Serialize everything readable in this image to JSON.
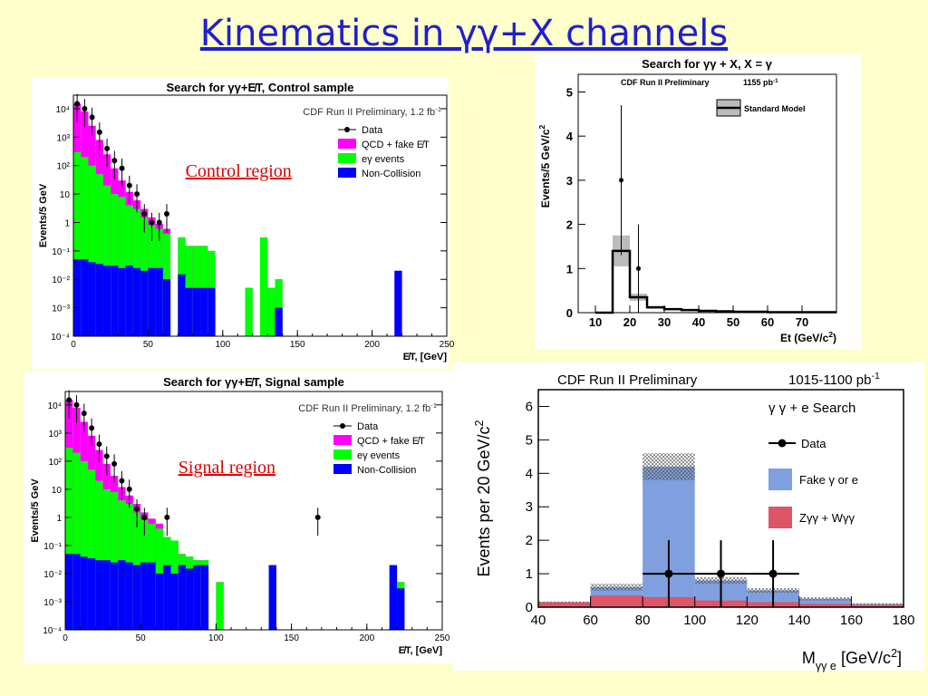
{
  "slide_title": "Kinematics in γγ+X channels",
  "colors": {
    "qcd": "#ff00ff",
    "eg": "#00ff00",
    "noncoll": "#0000ff",
    "fake": "#7f9fdf",
    "zgg": "#dd5566",
    "sm_band": "#bbbbbb",
    "region_text": "#dd0000",
    "title": "#1f1fd0"
  },
  "chart_data": [
    {
      "type": "bar",
      "title": "Search for γγ+E̸T, Control sample",
      "annotation": "CDF Run II Preliminary, 1.2 fb",
      "annotation_sup": "-1",
      "region_label": "Control region",
      "xlabel": "E̸T, [GeV]",
      "ylabel": "Events/5 GeV",
      "log_y": true,
      "xlim": [
        0,
        250
      ],
      "ylim": [
        0.0001,
        30000
      ],
      "x_ticks": [
        0,
        50,
        100,
        150,
        200,
        250
      ],
      "y_ticks": [
        {
          "v": 0.0001,
          "l": "10⁻⁴"
        },
        {
          "v": 0.001,
          "l": "10⁻³"
        },
        {
          "v": 0.01,
          "l": "10⁻²"
        },
        {
          "v": 0.1,
          "l": "10⁻¹"
        },
        {
          "v": 1,
          "l": "1"
        },
        {
          "v": 10,
          "l": "10"
        },
        {
          "v": 100,
          "l": "10²"
        },
        {
          "v": 1000,
          "l": "10³"
        },
        {
          "v": 10000,
          "l": "10⁴"
        }
      ],
      "legend": [
        "Data",
        "QCD + fake E̸T",
        "eγ events",
        "Non-Collision"
      ],
      "bin_width": 5,
      "bins_x": [
        0,
        5,
        10,
        15,
        20,
        25,
        30,
        35,
        40,
        45,
        50,
        55,
        60,
        65,
        70,
        75,
        80,
        85,
        90,
        95,
        100,
        105,
        110,
        115,
        120,
        125,
        130,
        135,
        140,
        145,
        150,
        155,
        160,
        165,
        170,
        175,
        180,
        185,
        190,
        195,
        200,
        205,
        210,
        215,
        220,
        225,
        230,
        235,
        240,
        245
      ],
      "noncoll": [
        0.05,
        0.05,
        0.04,
        0.035,
        0.03,
        0.03,
        0.025,
        0.03,
        0.025,
        0.02,
        0.025,
        0.025,
        0.01,
        0,
        0.015,
        0.005,
        0.005,
        0.005,
        0.005,
        0,
        0,
        0,
        0,
        0,
        0,
        0,
        0,
        0.001,
        0,
        0,
        0,
        0,
        0,
        0,
        0,
        0,
        0,
        0,
        0,
        0,
        0,
        0,
        0,
        0.02,
        0,
        0,
        0,
        0,
        0,
        0
      ],
      "eg": [
        300,
        200,
        100,
        50,
        20,
        10,
        8,
        4,
        3,
        1.5,
        0.8,
        0.6,
        0.4,
        0,
        0.3,
        0.15,
        0.15,
        0.15,
        0.1,
        0,
        0,
        0,
        0,
        0.005,
        0,
        0.3,
        0.005,
        0.01,
        0,
        0,
        0,
        0,
        0,
        0,
        0,
        0,
        0,
        0,
        0,
        0,
        0,
        0,
        0,
        0,
        0,
        0,
        0,
        0,
        0,
        0
      ],
      "total": [
        15000,
        8000,
        2500,
        800,
        250,
        80,
        30,
        12,
        6,
        3,
        1.5,
        0.9,
        0.6,
        0,
        0.3,
        0.15,
        0.15,
        0.15,
        0.1,
        0,
        0,
        0,
        0,
        0.005,
        0,
        0.3,
        0.005,
        0.01,
        0,
        0,
        0,
        0,
        0,
        0,
        0,
        0,
        0,
        0,
        0,
        0,
        0,
        0,
        0,
        0.02,
        0,
        0,
        0,
        0,
        0,
        0
      ],
      "data_points": [
        [
          2.5,
          15000
        ],
        [
          7.5,
          10000
        ],
        [
          12.5,
          5000
        ],
        [
          17.5,
          1500
        ],
        [
          22.5,
          400
        ],
        [
          27.5,
          150
        ],
        [
          32.5,
          80
        ],
        [
          37.5,
          20
        ],
        [
          42.5,
          10
        ],
        [
          47.5,
          2
        ],
        [
          52.5,
          1
        ],
        [
          57.5,
          1
        ],
        [
          62.5,
          2
        ]
      ]
    },
    {
      "type": "bar",
      "title": "Search for γγ+E̸T, Signal sample",
      "annotation": "CDF Run II Preliminary, 1.2 fb",
      "annotation_sup": "-1",
      "region_label": "Signal region",
      "xlabel": "E̸T, [GeV]",
      "ylabel": "Events/5 GeV",
      "log_y": true,
      "xlim": [
        0,
        250
      ],
      "ylim": [
        0.0001,
        30000
      ],
      "x_ticks": [
        0,
        50,
        100,
        150,
        200,
        250
      ],
      "y_ticks": [
        {
          "v": 0.0001,
          "l": "10⁻⁴"
        },
        {
          "v": 0.001,
          "l": "10⁻³"
        },
        {
          "v": 0.01,
          "l": "10⁻²"
        },
        {
          "v": 0.1,
          "l": "10⁻¹"
        },
        {
          "v": 1,
          "l": "1"
        },
        {
          "v": 10,
          "l": "10"
        },
        {
          "v": 100,
          "l": "10²"
        },
        {
          "v": 1000,
          "l": "10³"
        },
        {
          "v": 10000,
          "l": "10⁴"
        }
      ],
      "legend": [
        "Data",
        "QCD + fake E̸T",
        "eγ events",
        "Non-Collision"
      ],
      "bin_width": 5,
      "bins_x": [
        0,
        5,
        10,
        15,
        20,
        25,
        30,
        35,
        40,
        45,
        50,
        55,
        60,
        65,
        70,
        75,
        80,
        85,
        90,
        95,
        100,
        105,
        110,
        115,
        120,
        125,
        130,
        135,
        140,
        145,
        150,
        155,
        160,
        165,
        170,
        175,
        180,
        185,
        190,
        195,
        200,
        205,
        210,
        215,
        220,
        225,
        230,
        235,
        240,
        245
      ],
      "noncoll": [
        0.05,
        0.05,
        0.04,
        0.035,
        0.03,
        0.03,
        0.025,
        0.03,
        0.025,
        0.02,
        0.025,
        0.025,
        0.01,
        0.02,
        0.01,
        0.02,
        0.015,
        0.02,
        0.02,
        0,
        0,
        0,
        0,
        0,
        0,
        0,
        0,
        0.02,
        0,
        0,
        0,
        0,
        0,
        0,
        0,
        0,
        0,
        0,
        0,
        0,
        0,
        0,
        0,
        0.02,
        0.003,
        0,
        0,
        0,
        0,
        0
      ],
      "eg": [
        300,
        200,
        100,
        50,
        20,
        10,
        8,
        4,
        3,
        1.5,
        0.8,
        0.6,
        0.4,
        0.2,
        0.15,
        0.05,
        0.04,
        0.03,
        0.03,
        0,
        0.005,
        0,
        0,
        0,
        0,
        0,
        0,
        0.02,
        0,
        0,
        0,
        0,
        0,
        0,
        0,
        0,
        0,
        0,
        0,
        0,
        0,
        0,
        0,
        0.02,
        0.005,
        0,
        0,
        0,
        0,
        0
      ],
      "total": [
        15000,
        8000,
        2500,
        800,
        250,
        80,
        30,
        12,
        6,
        3,
        1.5,
        0.9,
        0.6,
        0.2,
        0.15,
        0.05,
        0.04,
        0.03,
        0.03,
        0,
        0.005,
        0,
        0,
        0,
        0,
        0,
        0,
        0.02,
        0,
        0,
        0,
        0,
        0,
        0,
        0,
        0,
        0,
        0,
        0,
        0,
        0,
        0,
        0,
        0.02,
        0.005,
        0,
        0,
        0,
        0,
        0
      ],
      "data_points": [
        [
          2.5,
          15000
        ],
        [
          7.5,
          10000
        ],
        [
          12.5,
          5000
        ],
        [
          17.5,
          1500
        ],
        [
          22.5,
          400
        ],
        [
          27.5,
          150
        ],
        [
          32.5,
          80
        ],
        [
          37.5,
          20
        ],
        [
          42.5,
          10
        ],
        [
          47.5,
          2
        ],
        [
          52.5,
          1
        ],
        [
          67.5,
          1
        ],
        [
          167.5,
          1
        ]
      ]
    },
    {
      "type": "bar",
      "title": "Search for γγ + X, X = γ",
      "annotation": "CDF Run II Preliminary",
      "annotation2": "1155 pb",
      "annotation2_sup": "-1",
      "legend": [
        "Standard Model"
      ],
      "xlabel": "Et (GeV/c",
      "xlabel_sup": "2",
      "xlabel_end": ")",
      "ylabel": "Events/5 GeV/c",
      "ylabel_sup": "2",
      "xlim": [
        5,
        80
      ],
      "ylim": [
        0,
        5.4
      ],
      "x_ticks": [
        10,
        20,
        30,
        40,
        50,
        60,
        70
      ],
      "y_ticks": [
        0,
        1,
        2,
        3,
        4,
        5
      ],
      "bin_width": 5,
      "bins_x": [
        10,
        15,
        20,
        25,
        30,
        35,
        40,
        45,
        50,
        55,
        60,
        65,
        70,
        75
      ],
      "sm": [
        0,
        1.4,
        0.35,
        0.12,
        0.08,
        0.06,
        0.04,
        0.03,
        0.02,
        0.02,
        0.01,
        0.01,
        0.01,
        0.01
      ],
      "sm_err": [
        0,
        0.35,
        0.08,
        0.03,
        0.02,
        0.01,
        0.01,
        0.01,
        0,
        0,
        0,
        0,
        0,
        0
      ],
      "data_points": [
        [
          17.5,
          3,
          1.7
        ],
        [
          22.5,
          1,
          1
        ]
      ]
    },
    {
      "type": "bar",
      "title": "CDF Run II Preliminary",
      "annotation": "1015-1100 pb",
      "annotation_sup": "-1",
      "search_label": "γ γ + e  Search",
      "legend": [
        "Data",
        "Fake γ or e",
        "Zγγ + Wγγ"
      ],
      "xlabel": "M",
      "xlabel_sub": "γγ e",
      "xlabel_unit": "[GeV/c",
      "xlabel_sup": "2",
      "xlabel_end": "]",
      "ylabel": "Events per 20 GeV/c",
      "ylabel_sup": "2",
      "xlim": [
        40,
        180
      ],
      "ylim": [
        0,
        6.5
      ],
      "x_ticks": [
        40,
        60,
        80,
        100,
        120,
        140,
        160,
        180
      ],
      "y_ticks": [
        0,
        1,
        2,
        3,
        4,
        5,
        6
      ],
      "bin_width": 20,
      "bins_x": [
        40,
        60,
        80,
        100,
        120,
        140,
        160
      ],
      "zgg": [
        0.15,
        0.35,
        0.3,
        0.2,
        0.15,
        0.1,
        0.07
      ],
      "total": [
        0.15,
        0.6,
        4.2,
        0.8,
        0.5,
        0.25,
        0.1
      ],
      "err": [
        0.02,
        0.1,
        0.4,
        0.1,
        0.07,
        0.05,
        0.02
      ],
      "data_points": [
        [
          90,
          1,
          10,
          1
        ],
        [
          110,
          1,
          10,
          1
        ],
        [
          130,
          1,
          10,
          1
        ]
      ]
    }
  ]
}
